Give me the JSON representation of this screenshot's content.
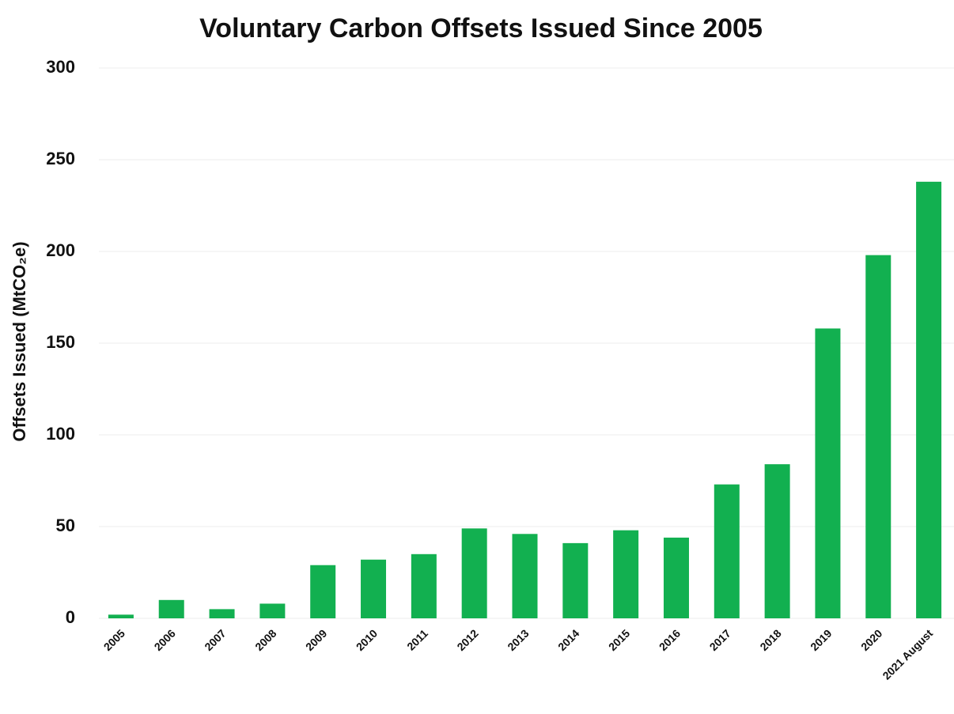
{
  "chart_data": {
    "type": "bar",
    "title": "Voluntary Carbon Offsets Issued Since 2005",
    "y_label": "Offsets Issued (MtCO₂e)",
    "categories": [
      "2005",
      "2006",
      "2007",
      "2008",
      "2009",
      "2010",
      "2011",
      "2012",
      "2013",
      "2014",
      "2015",
      "2016",
      "2017",
      "2018",
      "2019",
      "2020",
      "2021 August"
    ],
    "values": [
      2,
      10,
      5,
      8,
      29,
      32,
      35,
      49,
      46,
      41,
      48,
      44,
      73,
      84,
      158,
      198,
      238
    ],
    "color": "#12b050",
    "ylim": [
      0,
      300
    ],
    "yticks": [
      0,
      50,
      100,
      150,
      200,
      250,
      300
    ],
    "grid": true
  }
}
